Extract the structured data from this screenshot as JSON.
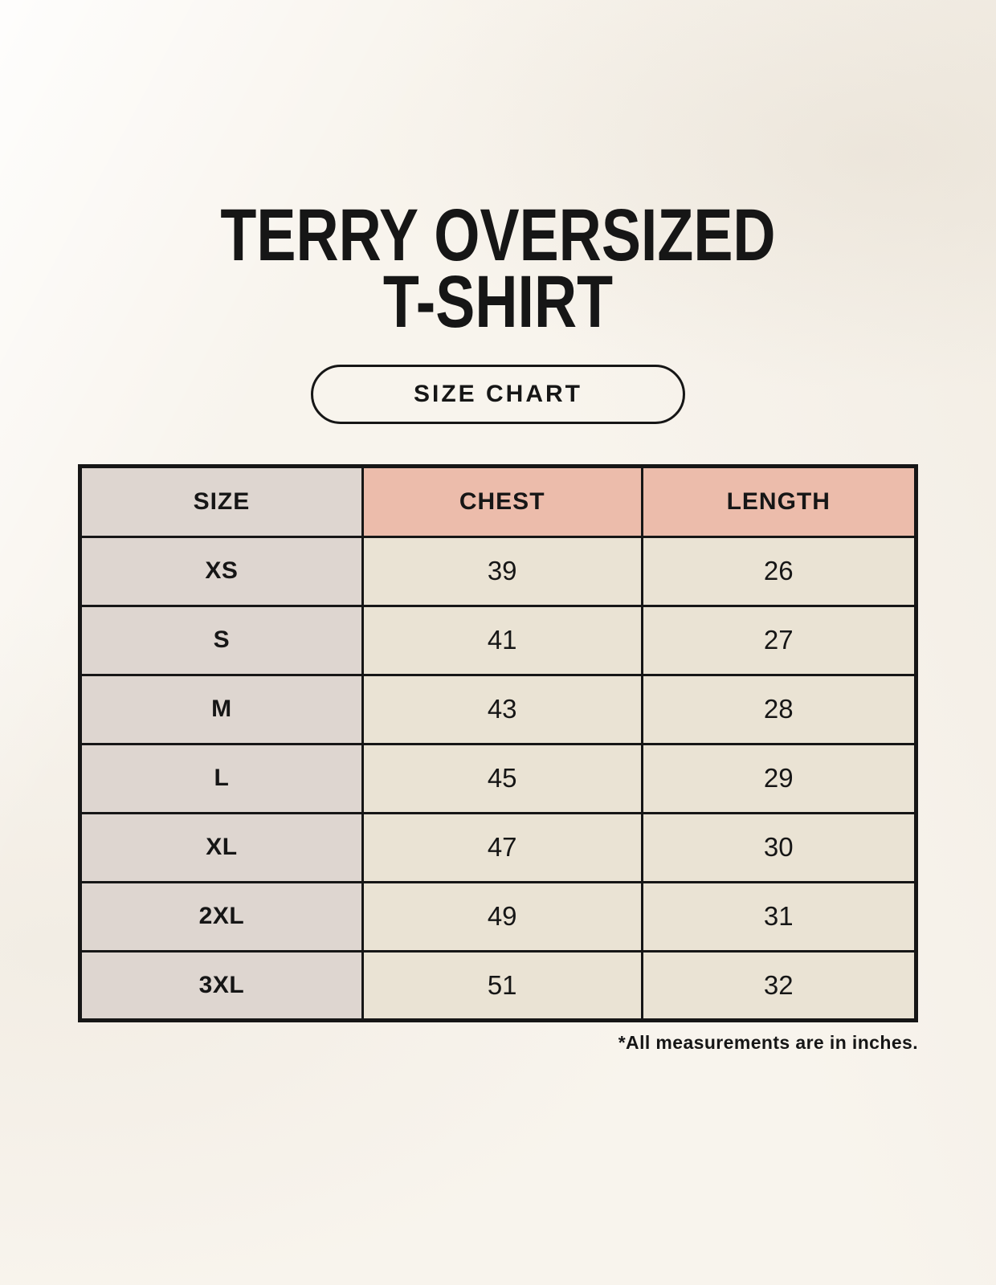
{
  "title": {
    "line1": "TERRY OVERSIZED",
    "line2": "T-SHIRT"
  },
  "size_chart_button_label": "SIZE CHART",
  "footnote": "*All measurements are in inches.",
  "colors": {
    "page_background": "#f8f4ed",
    "accent_header": "#ecbcab",
    "size_column": "#ded6d0",
    "data_cell": "#eae3d4",
    "border_and_text": "#161616"
  },
  "chart_data": {
    "type": "table",
    "title": "Terry Oversized T-Shirt Size Chart",
    "unit": "inches",
    "columns": [
      "SIZE",
      "CHEST",
      "LENGTH"
    ],
    "rows": [
      [
        "XS",
        "39",
        "26"
      ],
      [
        "S",
        "41",
        "27"
      ],
      [
        "M",
        "43",
        "28"
      ],
      [
        "L",
        "45",
        "29"
      ],
      [
        "XL",
        "47",
        "30"
      ],
      [
        "2XL",
        "49",
        "31"
      ],
      [
        "3XL",
        "51",
        "32"
      ]
    ]
  }
}
